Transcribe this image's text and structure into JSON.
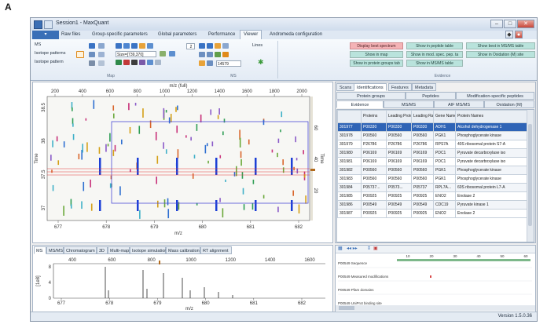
{
  "figure_label": "A",
  "window": {
    "title": "Session1 - MaxQuant"
  },
  "menu_tabs": [
    "Raw files",
    "Group-specific parameters",
    "Global parameters",
    "Performance",
    "Viewer",
    "Andromeda configuration"
  ],
  "active_menu_tab": "Viewer",
  "ribbon": {
    "map_group": {
      "ms_label": "MS",
      "isotope_patterns_label": "Isotope patterns",
      "isotope_pattern_label": "Isotope pattern",
      "size_value": "Size=[739,370]",
      "lines_label": "Lines",
      "zoom_value": "2",
      "mz_value": "14579",
      "map_caption": "Map",
      "ms_caption": "MS"
    },
    "evidence_buttons": [
      "Display best spectrum",
      "Show in peptide table",
      "Show best in MS/MS table",
      "Show in map",
      "Show in mod. spec. pep. ta",
      "Show in Oxidation (M) site",
      "Show in protein groups tab",
      "Show in MS/MS table"
    ],
    "evidence_caption": "Evidence"
  },
  "map_plot": {
    "top_axis_title": "m/z (full)",
    "top_ticks": [
      "200",
      "400",
      "600",
      "800",
      "1000",
      "1200",
      "1400",
      "1600",
      "1800",
      "2000"
    ],
    "bottom_axis_title": "m/z",
    "bottom_ticks": [
      "677",
      "678",
      "679",
      "680",
      "681",
      "682"
    ],
    "left_axis_title": "Time",
    "left_ticks": [
      "38.5",
      "38",
      "37.5",
      "37"
    ],
    "right_axis_title": "Time",
    "right_ticks": [
      "60",
      "40",
      "20"
    ]
  },
  "right_tabs_row1": [
    "Scans",
    "Identifications",
    "Features",
    "Metadata"
  ],
  "right_tabs_row2": [
    "Protein groups",
    "Peptides",
    "Modification-specific peptides"
  ],
  "right_tabs_row3": [
    "Evidence",
    "MS/MS",
    "AIF MS/MS",
    "Oxidation (M)"
  ],
  "protein_table": {
    "headers": [
      "",
      "Proteins",
      "Leading Proteins",
      "Leading Razor",
      "Gene Names",
      "Protein Names"
    ],
    "rows": [
      [
        "301977",
        "P00330",
        "P00330",
        "P00330",
        "ADH1",
        "Alcohol dehydrogenase 1"
      ],
      [
        "301978",
        "P00560",
        "P00560",
        "P00560",
        "PGK1",
        "Phosphoglycerate kinase"
      ],
      [
        "301979",
        "P26786",
        "P26786",
        "P26786",
        "RPS7A",
        "40S ribosomal protein S7-A"
      ],
      [
        "301980",
        "P06169",
        "P06169",
        "P06169",
        "PDC1",
        "Pyruvate decarboxylase iso"
      ],
      [
        "301981",
        "P06169",
        "P06169",
        "P06169",
        "PDC1",
        "Pyruvate decarboxylase iso"
      ],
      [
        "301982",
        "P00560",
        "P00560",
        "P00560",
        "PGK1",
        "Phosphoglycerate kinase"
      ],
      [
        "301983",
        "P00560",
        "P00560",
        "P00560",
        "PGK1",
        "Phosphoglycerate kinase"
      ],
      [
        "301984",
        "P05737...",
        "P0573...",
        "P05737",
        "RPL7A...",
        "60S ribosomal protein L7-A"
      ],
      [
        "301985",
        "P00925",
        "P00925",
        "P00925",
        "ENO2",
        "Enolase 2"
      ],
      [
        "301986",
        "P00549",
        "P00549",
        "P00549",
        "CDC19",
        "Pyruvate kinase 1"
      ],
      [
        "301987",
        "P00925",
        "P00925",
        "P00925",
        "ENO2",
        "Enolase 2"
      ]
    ]
  },
  "bottom_tabs": [
    "MS",
    "MS/MS",
    "Chromatogram",
    "3D",
    "Multi-map",
    "Isotope simulation",
    "Mass calibration",
    "RT alignment"
  ],
  "spectrum_plot": {
    "top_ticks": [
      "400",
      "600",
      "800",
      "1000",
      "1200",
      "1400",
      "1600"
    ],
    "bottom_axis_title": "m/z",
    "bottom_ticks": [
      "677",
      "678",
      "679",
      "680",
      "681",
      "682"
    ],
    "left_axis_title": "[1e8]",
    "left_ticks": [
      "8",
      "4",
      "0"
    ]
  },
  "sequence_panel": {
    "ruler": [
      "10",
      "20",
      "30",
      "40",
      "50",
      "60"
    ],
    "rows": [
      "P00549 Sequence",
      "P00549 Measured modifications",
      "P00549 Pfam domains",
      "P00549 UniProt binding site"
    ]
  },
  "status": {
    "version": "Version 1.5.0.36"
  },
  "colors": {
    "accent": "#2f64b6",
    "evidence_button": "#b9e3dc",
    "evidence_button_red": "#f4b3b6"
  }
}
